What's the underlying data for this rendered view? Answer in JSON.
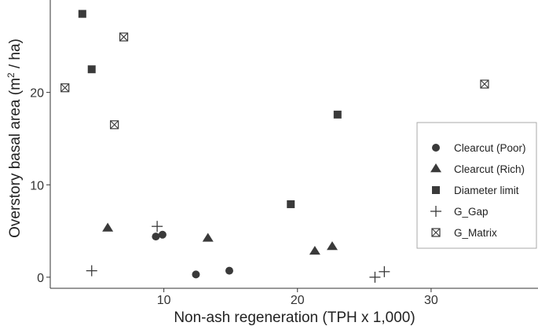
{
  "chart_data": {
    "type": "scatter",
    "title": "",
    "xlabel": "Non-ash regeneration (TPH x 1,000)",
    "ylabel_main": "Overstory basal area  (m",
    "ylabel_sup": "2",
    "ylabel_tail": " / ha)",
    "xlim": [
      1.5,
      38
    ],
    "ylim": [
      -1.2,
      30
    ],
    "x_ticks": [
      10,
      20,
      30
    ],
    "y_ticks": [
      0,
      10,
      20
    ],
    "grid": false,
    "legend_position": "right",
    "series": [
      {
        "name": "Clearcut (Poor)",
        "marker": "circle",
        "x": [
          9.4,
          9.9,
          12.4,
          14.9
        ],
        "y": [
          4.4,
          4.6,
          0.3,
          0.7
        ]
      },
      {
        "name": "Clearcut (Rich)",
        "marker": "triangle",
        "x": [
          5.8,
          13.3,
          21.3,
          22.6
        ],
        "y": [
          5.3,
          4.2,
          2.8,
          3.3
        ]
      },
      {
        "name": "Diameter limit",
        "marker": "square",
        "x": [
          3.9,
          4.6,
          19.5,
          23.0
        ],
        "y": [
          28.5,
          22.5,
          7.9,
          17.6
        ]
      },
      {
        "name": "G_Gap",
        "marker": "plus",
        "x": [
          4.6,
          9.5,
          25.8,
          26.5
        ],
        "y": [
          0.7,
          5.5,
          0.0,
          0.6
        ]
      },
      {
        "name": "G_Matrix",
        "marker": "boxx",
        "x": [
          2.6,
          7.0,
          6.3,
          34.0
        ],
        "y": [
          20.5,
          26.0,
          16.5,
          20.9
        ]
      }
    ]
  },
  "colors": {
    "marker": "#3a3a3a",
    "axis": "#333333",
    "legend_border": "#aaaaaa"
  }
}
